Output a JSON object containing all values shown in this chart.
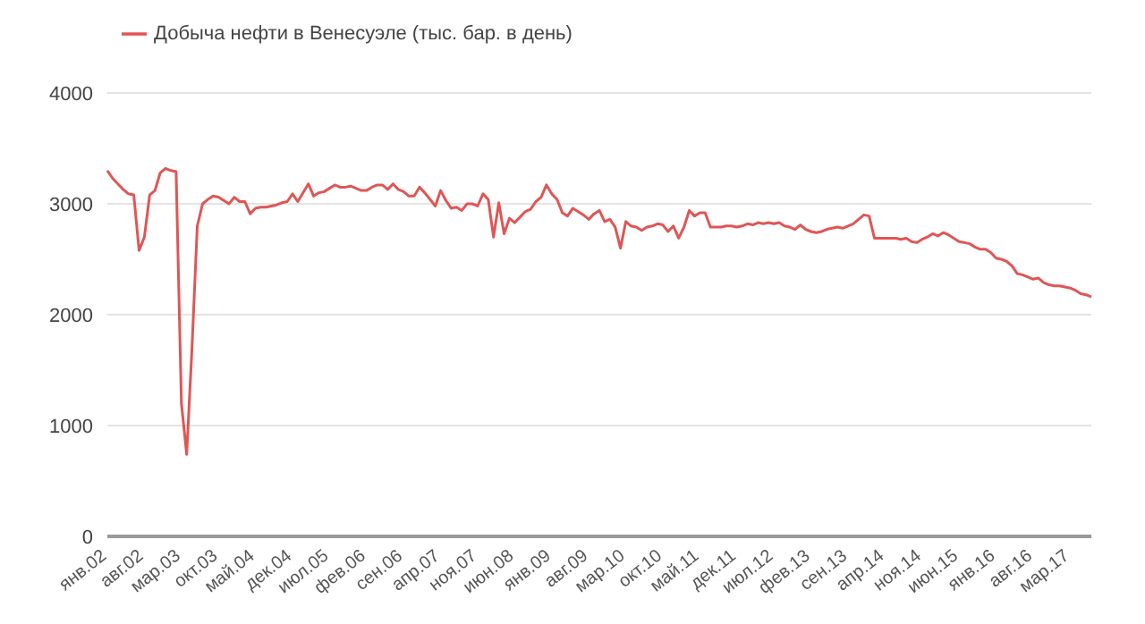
{
  "chart_data": {
    "type": "line",
    "categories": [
      "янв.02",
      null,
      null,
      null,
      null,
      null,
      null,
      "авг.02",
      null,
      null,
      null,
      null,
      null,
      null,
      "мар.03",
      null,
      null,
      null,
      null,
      null,
      null,
      "окт.03",
      null,
      null,
      null,
      null,
      null,
      null,
      "май.04",
      null,
      null,
      null,
      null,
      null,
      null,
      "дек.04",
      null,
      null,
      null,
      null,
      null,
      null,
      "июл.05",
      null,
      null,
      null,
      null,
      null,
      null,
      "фев.06",
      null,
      null,
      null,
      null,
      null,
      null,
      "сен.06",
      null,
      null,
      null,
      null,
      null,
      null,
      "апр.07",
      null,
      null,
      null,
      null,
      null,
      null,
      "ноя.07",
      null,
      null,
      null,
      null,
      null,
      null,
      "июн.08",
      null,
      null,
      null,
      null,
      null,
      null,
      "янв.09",
      null,
      null,
      null,
      null,
      null,
      null,
      "авг.09",
      null,
      null,
      null,
      null,
      null,
      null,
      "мар.10",
      null,
      null,
      null,
      null,
      null,
      null,
      "окт.10",
      null,
      null,
      null,
      null,
      null,
      null,
      "май.11",
      null,
      null,
      null,
      null,
      null,
      null,
      "дек.11",
      null,
      null,
      null,
      null,
      null,
      null,
      "июл.12",
      null,
      null,
      null,
      null,
      null,
      null,
      "фев.13",
      null,
      null,
      null,
      null,
      null,
      null,
      "сен.13",
      null,
      null,
      null,
      null,
      null,
      null,
      "апр.14",
      null,
      null,
      null,
      null,
      null,
      null,
      "ноя.14",
      null,
      null,
      null,
      null,
      null,
      null,
      "июн.15",
      null,
      null,
      null,
      null,
      null,
      null,
      "янв.16",
      null,
      null,
      null,
      null,
      null,
      null,
      "авг.16",
      null,
      null,
      null,
      null,
      null,
      null,
      "мар.17",
      null,
      null,
      null,
      null
    ],
    "series": [
      {
        "name": "Добыча нефти в Венесуэле (тыс. бар. в день)",
        "color": "#e05555",
        "values": [
          3300,
          3230,
          3180,
          3130,
          3090,
          3080,
          2580,
          2700,
          3080,
          3120,
          3280,
          3320,
          3300,
          3290,
          1200,
          740,
          1700,
          2800,
          3000,
          3040,
          3070,
          3060,
          3030,
          3000,
          3060,
          3020,
          3020,
          2910,
          2960,
          2970,
          2970,
          2980,
          2990,
          3010,
          3020,
          3090,
          3020,
          3100,
          3180,
          3070,
          3100,
          3110,
          3140,
          3170,
          3150,
          3150,
          3160,
          3140,
          3120,
          3120,
          3150,
          3170,
          3170,
          3130,
          3180,
          3130,
          3110,
          3070,
          3070,
          3150,
          3100,
          3040,
          2980,
          3120,
          3030,
          2960,
          2970,
          2940,
          3000,
          3000,
          2980,
          3090,
          3040,
          2700,
          3010,
          2730,
          2870,
          2830,
          2880,
          2930,
          2950,
          3020,
          3060,
          3170,
          3090,
          3040,
          2920,
          2890,
          2960,
          2930,
          2900,
          2860,
          2910,
          2940,
          2840,
          2860,
          2790,
          2600,
          2840,
          2800,
          2790,
          2760,
          2790,
          2800,
          2820,
          2810,
          2750,
          2800,
          2690,
          2790,
          2940,
          2890,
          2920,
          2920,
          2790,
          2790,
          2790,
          2800,
          2800,
          2790,
          2800,
          2820,
          2810,
          2830,
          2820,
          2830,
          2820,
          2830,
          2800,
          2790,
          2770,
          2810,
          2770,
          2750,
          2740,
          2750,
          2770,
          2780,
          2790,
          2780,
          2800,
          2820,
          2860,
          2900,
          2890,
          2690,
          2690,
          2690,
          2690,
          2690,
          2680,
          2690,
          2660,
          2650,
          2680,
          2700,
          2730,
          2710,
          2740,
          2720,
          2690,
          2660,
          2650,
          2640,
          2610,
          2590,
          2590,
          2560,
          2510,
          2500,
          2480,
          2440,
          2370,
          2360,
          2340,
          2320,
          2330,
          2290,
          2270,
          2260,
          2260,
          2250,
          2240,
          2220,
          2190,
          2180,
          2160
        ]
      }
    ],
    "ylim": [
      0,
      4000
    ],
    "yticks": [
      0,
      1000,
      2000,
      3000,
      4000
    ],
    "grid": "y",
    "legend": "top left",
    "marker": "none",
    "line_style": "solid"
  }
}
